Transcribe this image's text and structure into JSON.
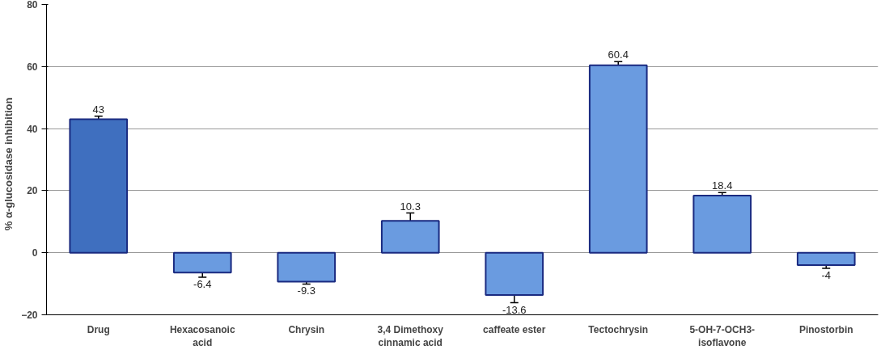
{
  "chart_data": {
    "type": "bar",
    "ylabel": "% α-glucosidase    inhibition",
    "categories": [
      "Drug",
      "Hexacosanoic acid",
      "Chrysin",
      "3,4 Dimethoxy cinnamic acid",
      "caffeate ester",
      "Tectochrysin",
      "5-OH-7-OCH3-isoflavone",
      "Pinostorbin"
    ],
    "values": [
      43,
      -6.4,
      -9.3,
      10.3,
      -13.6,
      60.4,
      18.4,
      -4
    ],
    "colors": [
      "#3f6fbf",
      "#6a9be0",
      "#6a9be0",
      "#6a9be0",
      "#6a9be0",
      "#6a9be0",
      "#6a9be0",
      "#6a9be0"
    ],
    "errors": [
      1,
      1.5,
      0.8,
      2.5,
      2.5,
      1.2,
      1,
      1
    ],
    "ylim": [
      -20,
      80
    ],
    "yticks": [
      -20,
      0,
      20,
      40,
      60,
      80
    ],
    "grid": "y",
    "data_labels": true
  }
}
